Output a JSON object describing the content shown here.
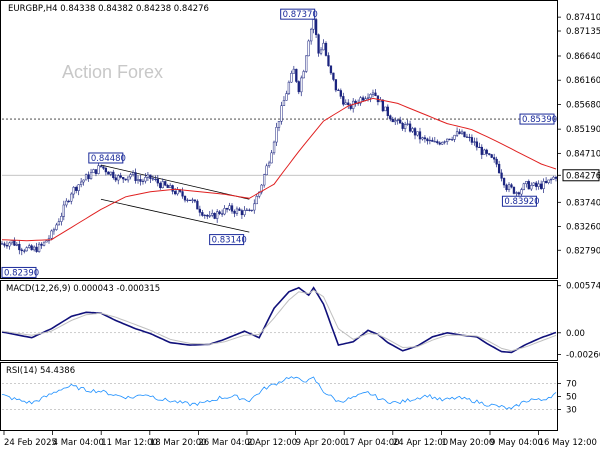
{
  "symbol_line": "EURGBP,H4  0.84338 0.84382 0.84238 0.84276",
  "watermark": "Action Forex",
  "colors": {
    "up_candle": "#1a237e",
    "down_candle": "#1a237e",
    "sma": "#e02020",
    "macd_main": "#10107a",
    "macd_signal": "#c0c0c0",
    "rsi_line": "#1e90ff",
    "level_lines": "#b0b0b0",
    "annotation": "#1a2a9a"
  },
  "chart_data": [
    {
      "type": "candlestick",
      "panel": "price",
      "title": "EURGBP,H4",
      "ylim": [
        0.8226,
        0.8771
      ],
      "y_ticks": [
        "0.87410",
        "0.87135",
        "0.86640",
        "0.86160",
        "0.85680",
        "0.85190",
        "0.84710",
        "0.84276",
        "0.83740",
        "0.83260",
        "0.82790"
      ],
      "y_tick_values": [
        0.8741,
        0.87135,
        0.8664,
        0.8616,
        0.8568,
        0.8519,
        0.8471,
        0.84276,
        0.8374,
        0.8326,
        0.8279
      ],
      "x_tick_labels": [
        "24 Feb 2025",
        "4 Mar 04:00",
        "11 Mar 12:00",
        "18 Mar 20:00",
        "26 Mar 04:00",
        "2 Apr 12:00",
        "9 Apr 20:00",
        "17 Apr 04:00",
        "24 Apr 12:00",
        "1 May 20:00",
        "9 May 04:00",
        "16 May 12:00"
      ],
      "price_path": [
        [
          0,
          0.8292
        ],
        [
          4,
          0.8296
        ],
        [
          8,
          0.8284
        ],
        [
          12,
          0.8279
        ],
        [
          16,
          0.8287
        ],
        [
          20,
          0.831
        ],
        [
          24,
          0.835
        ],
        [
          28,
          0.8395
        ],
        [
          32,
          0.8415
        ],
        [
          36,
          0.843
        ],
        [
          40,
          0.8445
        ],
        [
          44,
          0.8432
        ],
        [
          48,
          0.842
        ],
        [
          52,
          0.843
        ],
        [
          56,
          0.8416
        ],
        [
          60,
          0.8422
        ],
        [
          64,
          0.841
        ],
        [
          68,
          0.84
        ],
        [
          72,
          0.839
        ],
        [
          76,
          0.838
        ],
        [
          80,
          0.836
        ],
        [
          84,
          0.8342
        ],
        [
          88,
          0.8355
        ],
        [
          92,
          0.836
        ],
        [
          96,
          0.8356
        ],
        [
          100,
          0.8352
        ],
        [
          104,
          0.8395
        ],
        [
          108,
          0.846
        ],
        [
          112,
          0.854
        ],
        [
          116,
          0.861
        ],
        [
          118,
          0.8635
        ],
        [
          120,
          0.86
        ],
        [
          122,
          0.864
        ],
        [
          124,
          0.87
        ],
        [
          126,
          0.8737
        ],
        [
          128,
          0.867
        ],
        [
          130,
          0.869
        ],
        [
          132,
          0.864
        ],
        [
          135,
          0.86
        ],
        [
          140,
          0.856
        ],
        [
          145,
          0.858
        ],
        [
          150,
          0.8595
        ],
        [
          155,
          0.8555
        ],
        [
          160,
          0.853
        ],
        [
          165,
          0.852
        ],
        [
          170,
          0.8498
        ],
        [
          175,
          0.849
        ],
        [
          180,
          0.8502
        ],
        [
          185,
          0.851
        ],
        [
          190,
          0.8495
        ],
        [
          195,
          0.847
        ],
        [
          200,
          0.845
        ],
        [
          204,
          0.8405
        ],
        [
          208,
          0.8395
        ],
        [
          212,
          0.8408
        ],
        [
          216,
          0.8405
        ],
        [
          220,
          0.841
        ],
        [
          224,
          0.8427
        ]
      ],
      "sma_path": [
        [
          0,
          0.83
        ],
        [
          10,
          0.8298
        ],
        [
          20,
          0.83
        ],
        [
          30,
          0.833
        ],
        [
          40,
          0.836
        ],
        [
          50,
          0.8385
        ],
        [
          60,
          0.8395
        ],
        [
          70,
          0.84
        ],
        [
          80,
          0.8395
        ],
        [
          90,
          0.839
        ],
        [
          100,
          0.8382
        ],
        [
          110,
          0.841
        ],
        [
          120,
          0.8475
        ],
        [
          130,
          0.8535
        ],
        [
          140,
          0.8565
        ],
        [
          150,
          0.858
        ],
        [
          160,
          0.857
        ],
        [
          170,
          0.855
        ],
        [
          180,
          0.853
        ],
        [
          190,
          0.8518
        ],
        [
          200,
          0.8495
        ],
        [
          210,
          0.847
        ],
        [
          218,
          0.845
        ],
        [
          224,
          0.844
        ]
      ],
      "channel_upper": [
        [
          40,
          0.8448
        ],
        [
          100,
          0.838
        ]
      ],
      "channel_lower": [
        [
          40,
          0.838
        ],
        [
          100,
          0.8315
        ]
      ],
      "horizontal_levels": [
        0.8539
      ],
      "current_price": "0.84276",
      "annotations": [
        {
          "label": "0.82390",
          "x": 0,
          "y": 0.8239
        },
        {
          "label": "0.84480",
          "x": 44,
          "y": 0.8448
        },
        {
          "label": "0.83140",
          "x": 88,
          "y": 0.8314
        },
        {
          "label": "0.87370",
          "x": 124,
          "y": 0.8737
        },
        {
          "label": "0.85390",
          "x": 224,
          "y": 0.8539
        },
        {
          "label": "0.83920",
          "x": 208,
          "y": 0.8392
        }
      ]
    },
    {
      "type": "line",
      "panel": "macd",
      "title": "MACD(12,26,9) 0.000043 -0.000315",
      "ylim": [
        -0.0032,
        0.0062
      ],
      "y_ticks": [
        "0.005749",
        "0.00",
        "-0.002663"
      ],
      "y_tick_values": [
        0.005749,
        0.0,
        -0.002663
      ],
      "series": [
        {
          "role": "main",
          "values_path": [
            [
              0,
              0.0001
            ],
            [
              12,
              -0.0006
            ],
            [
              20,
              0.0005
            ],
            [
              28,
              0.002
            ],
            [
              34,
              0.0025
            ],
            [
              40,
              0.0024
            ],
            [
              46,
              0.0015
            ],
            [
              54,
              0.0005
            ],
            [
              60,
              -0.0001
            ],
            [
              68,
              -0.0012
            ],
            [
              76,
              -0.0015
            ],
            [
              84,
              -0.0014
            ],
            [
              90,
              -0.0008
            ],
            [
              98,
              0.0002
            ],
            [
              104,
              -0.0006
            ],
            [
              110,
              0.003
            ],
            [
              116,
              0.005
            ],
            [
              120,
              0.0055
            ],
            [
              124,
              0.0046
            ],
            [
              126,
              0.0055
            ],
            [
              130,
              0.0035
            ],
            [
              136,
              -0.0015
            ],
            [
              142,
              -0.0011
            ],
            [
              148,
              0.0003
            ],
            [
              152,
              -0.0002
            ],
            [
              156,
              -0.0012
            ],
            [
              162,
              -0.0022
            ],
            [
              168,
              -0.0016
            ],
            [
              174,
              -0.0005
            ],
            [
              180,
              0.0
            ],
            [
              186,
              -0.0003
            ],
            [
              192,
              -0.0005
            ],
            [
              196,
              -0.0013
            ],
            [
              202,
              -0.0023
            ],
            [
              206,
              -0.0024
            ],
            [
              212,
              -0.0014
            ],
            [
              218,
              -0.0006
            ],
            [
              224,
              4e-05
            ]
          ]
        },
        {
          "role": "signal",
          "values_path": [
            [
              0,
              0.0002
            ],
            [
              12,
              -0.0003
            ],
            [
              20,
              0.0002
            ],
            [
              28,
              0.0015
            ],
            [
              34,
              0.0022
            ],
            [
              40,
              0.0024
            ],
            [
              46,
              0.0019
            ],
            [
              54,
              0.001
            ],
            [
              60,
              0.0003
            ],
            [
              68,
              -0.0008
            ],
            [
              76,
              -0.0013
            ],
            [
              84,
              -0.0014
            ],
            [
              90,
              -0.0011
            ],
            [
              98,
              -0.0003
            ],
            [
              104,
              -0.0002
            ],
            [
              110,
              0.0018
            ],
            [
              116,
              0.004
            ],
            [
              120,
              0.005
            ],
            [
              124,
              0.0048
            ],
            [
              126,
              0.0052
            ],
            [
              130,
              0.0044
            ],
            [
              136,
              0.0005
            ],
            [
              142,
              -0.0008
            ],
            [
              148,
              -0.0001
            ],
            [
              152,
              -0.0002
            ],
            [
              156,
              -0.0008
            ],
            [
              162,
              -0.0018
            ],
            [
              168,
              -0.0017
            ],
            [
              174,
              -0.0009
            ],
            [
              180,
              -0.0003
            ],
            [
              186,
              -0.0003
            ],
            [
              192,
              -0.0004
            ],
            [
              196,
              -0.0009
            ],
            [
              202,
              -0.0019
            ],
            [
              206,
              -0.0022
            ],
            [
              212,
              -0.0017
            ],
            [
              218,
              -0.001
            ],
            [
              224,
              -0.000315
            ]
          ]
        }
      ]
    },
    {
      "type": "line",
      "panel": "rsi",
      "title": "RSI(14) 54.4386",
      "ylim": [
        0,
        100
      ],
      "y_ticks": [
        "70",
        "50",
        "30"
      ],
      "y_tick_values": [
        70,
        50,
        30
      ],
      "levels": [
        70,
        30
      ],
      "series": [
        {
          "role": "rsi",
          "values_path": [
            [
              0,
              52
            ],
            [
              6,
              45
            ],
            [
              12,
              40
            ],
            [
              18,
              50
            ],
            [
              24,
              62
            ],
            [
              28,
              66
            ],
            [
              34,
              60
            ],
            [
              40,
              58
            ],
            [
              46,
              52
            ],
            [
              52,
              48
            ],
            [
              58,
              54
            ],
            [
              64,
              46
            ],
            [
              70,
              42
            ],
            [
              76,
              38
            ],
            [
              82,
              40
            ],
            [
              88,
              48
            ],
            [
              94,
              50
            ],
            [
              100,
              44
            ],
            [
              106,
              62
            ],
            [
              112,
              72
            ],
            [
              116,
              80
            ],
            [
              120,
              76
            ],
            [
              124,
              74
            ],
            [
              126,
              78
            ],
            [
              130,
              58
            ],
            [
              136,
              42
            ],
            [
              142,
              48
            ],
            [
              148,
              56
            ],
            [
              154,
              44
            ],
            [
              160,
              40
            ],
            [
              166,
              46
            ],
            [
              172,
              52
            ],
            [
              178,
              44
            ],
            [
              184,
              48
            ],
            [
              190,
              44
            ],
            [
              196,
              38
            ],
            [
              202,
              34
            ],
            [
              206,
              30
            ],
            [
              210,
              40
            ],
            [
              214,
              46
            ],
            [
              218,
              44
            ],
            [
              224,
              54.4
            ]
          ]
        }
      ]
    }
  ]
}
